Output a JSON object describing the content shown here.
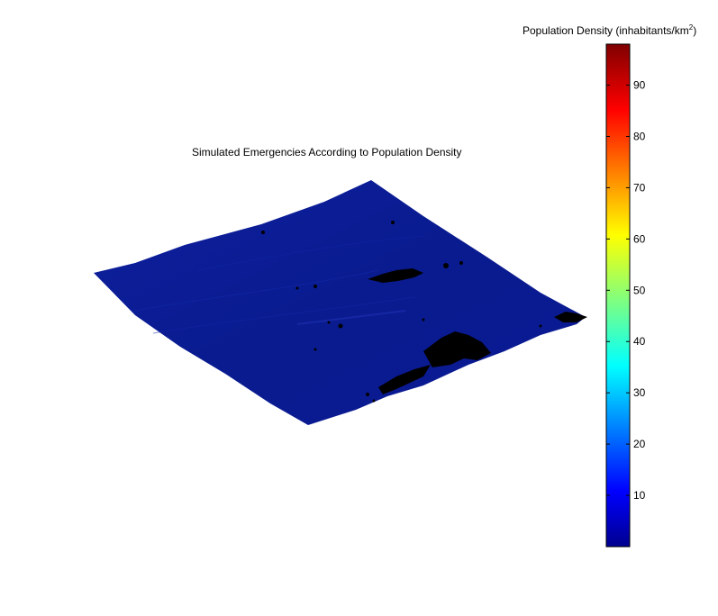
{
  "chart_data": {
    "type": "surface",
    "title": "Simulated Emergencies According to Population Density",
    "colorbar": {
      "label_prefix": "Population Density (inhabitants/km",
      "label_superscript": "2",
      "label_suffix": ")",
      "range": [
        0,
        98
      ],
      "ticks": [
        10,
        20,
        30,
        40,
        50,
        60,
        70,
        80,
        90
      ],
      "colormap": "jet"
    },
    "surface": {
      "dominant_value": 2,
      "dense_areas": [
        {
          "label": "",
          "relative_density": "high"
        },
        {
          "label": "",
          "relative_density": "medium"
        },
        {
          "label": "",
          "relative_density": "medium"
        }
      ]
    },
    "colors": {
      "surface_base": "#0a1b8f",
      "mesh_lines": "#000000",
      "background": "#ffffff"
    }
  }
}
